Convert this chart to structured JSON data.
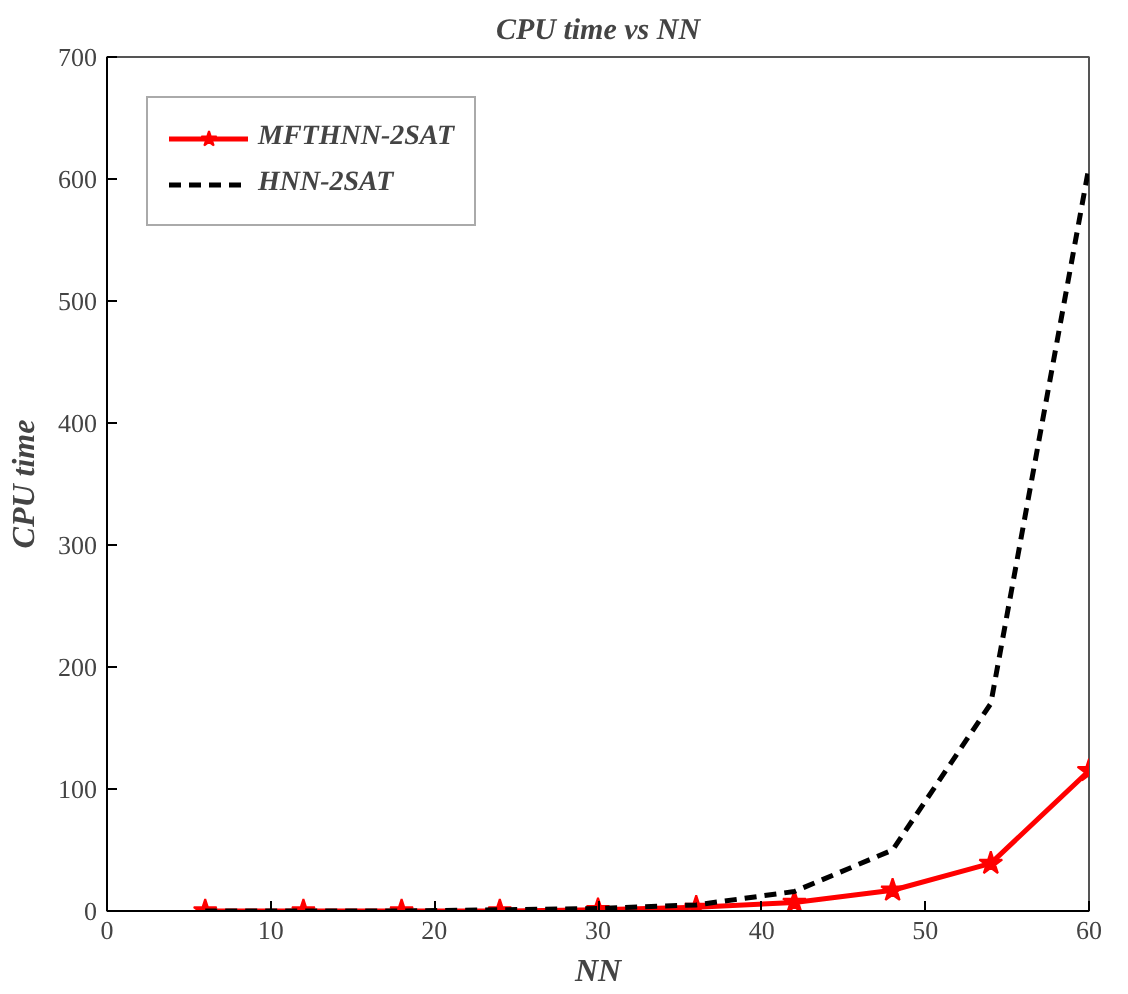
{
  "chart_data": {
    "type": "line",
    "title": "CPU time vs NN",
    "xlabel": "NN",
    "ylabel": "CPU time",
    "x": [
      6,
      12,
      18,
      24,
      30,
      36,
      42,
      48,
      54,
      60
    ],
    "series": [
      {
        "name": "MFTHNN-2SAT",
        "color": "#ff0000",
        "marker": "star",
        "line_style": "solid",
        "values": [
          0,
          0,
          0,
          0,
          1,
          3,
          7,
          17,
          39,
          115
        ]
      },
      {
        "name": "HNN-2SAT",
        "color": "#000000",
        "marker": "none",
        "line_style": "dashed",
        "values": [
          0,
          0,
          0,
          1,
          2,
          5,
          16,
          50,
          170,
          610
        ]
      }
    ],
    "xlim": [
      0,
      60
    ],
    "ylim": [
      0,
      700
    ],
    "xticks": [
      0,
      10,
      20,
      30,
      40,
      50,
      60
    ],
    "yticks": [
      0,
      100,
      200,
      300,
      400,
      500,
      600,
      700
    ],
    "grid": false,
    "legend": "top left"
  }
}
